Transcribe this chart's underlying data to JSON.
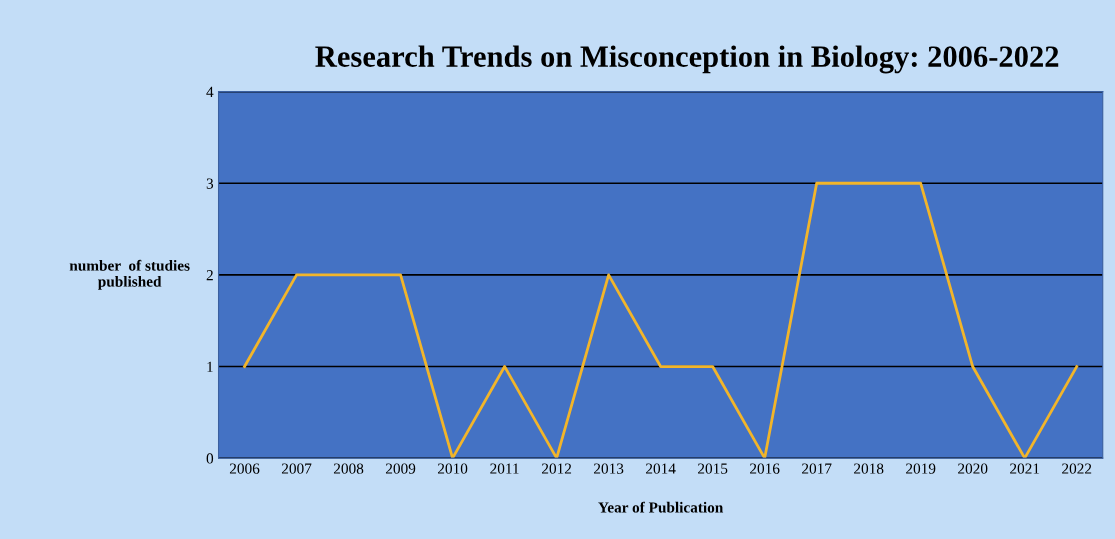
{
  "chart_data": {
    "type": "line",
    "title": "Research Trends on Misconception in Biology: 2006-2022",
    "xlabel": "Year of Publication",
    "ylabel": "number  of studies\npublished",
    "categories": [
      "2006",
      "2007",
      "2008",
      "2009",
      "2010",
      "2011",
      "2012",
      "2013",
      "2014",
      "2015",
      "2016",
      "2017",
      "2018",
      "2019",
      "2020",
      "2021",
      "2022"
    ],
    "series": [
      {
        "color": "#f2b52a",
        "values": [
          1,
          2,
          2,
          2,
          0,
          1,
          0,
          2,
          1,
          1,
          0,
          3,
          3,
          3,
          1,
          0,
          1
        ]
      }
    ],
    "ylim": [
      0,
      4
    ],
    "yticks": [
      0,
      1,
      2,
      3,
      4
    ],
    "grid": "y",
    "legend": false,
    "marker": "none",
    "line_style": "solid"
  }
}
